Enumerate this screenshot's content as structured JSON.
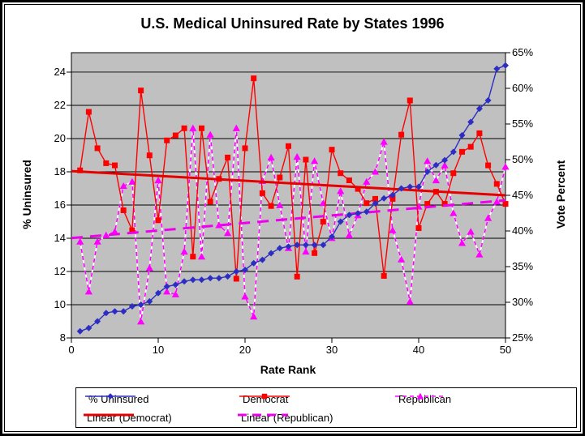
{
  "chart_data": {
    "type": "line",
    "title": "U.S. Medical Uninsured Rate by States 1996",
    "xlabel": "Rate Rank",
    "ylabel_left": "% Uninsured",
    "ylabel_right": "Vote Percent",
    "plot_bg": "#c0c0c0",
    "grid": true,
    "legend_position": "bottom",
    "x_axis": {
      "min": 0,
      "max": 50,
      "ticks": [
        0,
        10,
        20,
        30,
        40,
        50
      ]
    },
    "left_axis": {
      "min": 8,
      "max": 25.17,
      "ticks": [
        8,
        10,
        12,
        14,
        16,
        18,
        20,
        22,
        24
      ]
    },
    "right_axis": {
      "min": 25,
      "max": 65,
      "ticks": [
        25,
        30,
        35,
        40,
        45,
        50,
        55,
        60,
        65
      ],
      "suffix": "%"
    },
    "x": [
      1,
      2,
      3,
      4,
      5,
      6,
      7,
      8,
      9,
      10,
      11,
      12,
      13,
      14,
      15,
      16,
      17,
      18,
      19,
      20,
      21,
      22,
      23,
      24,
      25,
      26,
      27,
      28,
      29,
      30,
      31,
      32,
      33,
      34,
      35,
      36,
      37,
      38,
      39,
      40,
      41,
      42,
      43,
      44,
      45,
      46,
      47,
      48,
      49,
      50
    ],
    "series": [
      {
        "name": "% Uninsured",
        "axis": "left",
        "kind": "data",
        "marker": "diamond",
        "color": "#2d2dc4",
        "dashed": false,
        "values": [
          8.4,
          8.6,
          9.0,
          9.5,
          9.6,
          9.6,
          9.9,
          10.0,
          10.2,
          10.7,
          11.1,
          11.2,
          11.4,
          11.5,
          11.5,
          11.6,
          11.6,
          11.7,
          12.0,
          12.1,
          12.5,
          12.7,
          13.1,
          13.4,
          13.5,
          13.6,
          13.6,
          13.6,
          13.6,
          14.1,
          15.0,
          15.4,
          15.5,
          15.6,
          16.1,
          16.4,
          16.6,
          17.0,
          17.1,
          17.1,
          18.0,
          18.4,
          18.7,
          19.2,
          20.2,
          21.0,
          21.8,
          22.3,
          24.2,
          24.4
        ]
      },
      {
        "name": "Democrat",
        "axis": "right",
        "kind": "data",
        "marker": "square",
        "color": "#ff0000",
        "dashed": false,
        "values": [
          48.5,
          56.7,
          51.6,
          49.5,
          49.2,
          42.9,
          40.1,
          59.7,
          50.6,
          41.5,
          52.7,
          53.4,
          54.4,
          36.4,
          54.4,
          44.1,
          47.3,
          50.3,
          33.3,
          51.6,
          61.4,
          45.3,
          43.5,
          47.5,
          51.9,
          33.6,
          50.0,
          36.9,
          41.3,
          51.4,
          48.1,
          47.1,
          45.9,
          43.9,
          44.5,
          33.7,
          44.5,
          53.5,
          58.3,
          40.4,
          43.8,
          45.5,
          43.8,
          48.1,
          51.1,
          51.8,
          53.7,
          49.2,
          46.6,
          43.8
        ]
      },
      {
        "name": "Republican",
        "axis": "right",
        "kind": "data",
        "marker": "triangle",
        "color": "#ff00ff",
        "dashed": true,
        "values": [
          38.5,
          31.5,
          38.5,
          39.4,
          39.9,
          46.3,
          46.9,
          27.3,
          34.8,
          47.1,
          31.5,
          31.1,
          37.1,
          54.4,
          36.4,
          53.5,
          40.8,
          39.7,
          54.4,
          30.8,
          28.0,
          47.0,
          50.3,
          43.6,
          37.6,
          50.4,
          37.1,
          49.8,
          43.9,
          39.0,
          45.6,
          39.4,
          42.2,
          46.9,
          48.3,
          52.5,
          40.1,
          36.0,
          30.1,
          43.4,
          49.8,
          47.1,
          49.2,
          42.5,
          38.3,
          39.9,
          36.7,
          41.8,
          44.1,
          49.0
        ]
      },
      {
        "name": "Linear (Democrat)",
        "axis": "right",
        "kind": "trend",
        "color": "#e60000",
        "dashed": false,
        "start": 48.4,
        "end": 45.0
      },
      {
        "name": "Linear (Republican)",
        "axis": "right",
        "kind": "trend",
        "color": "#ee00ee",
        "dashed": true,
        "start": 39.0,
        "end": 44.3
      }
    ],
    "legend_rows": [
      [
        "% Uninsured",
        "Democrat",
        "Republican"
      ],
      [
        "Linear (Democrat)",
        "Linear (Republican)"
      ]
    ]
  }
}
